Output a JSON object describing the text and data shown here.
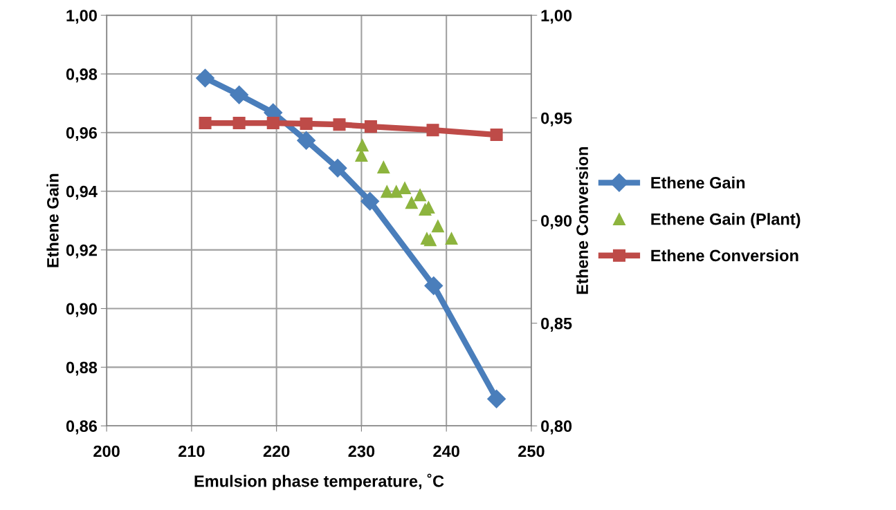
{
  "chart_data": {
    "type": "line",
    "xlabel": "Emulsion phase temperature, ˚C",
    "ylabel": "Ethene Gain",
    "y2label": "Ethene Conversion",
    "xlim": [
      200,
      250
    ],
    "xticks": [
      200,
      210,
      220,
      230,
      240,
      250
    ],
    "ylim": [
      0.86,
      1.0
    ],
    "yticks": [
      {
        "value": 0.86,
        "label": "0,86"
      },
      {
        "value": 0.88,
        "label": "0,88"
      },
      {
        "value": 0.9,
        "label": "0,90"
      },
      {
        "value": 0.92,
        "label": "0,92"
      },
      {
        "value": 0.94,
        "label": "0,94"
      },
      {
        "value": 0.96,
        "label": "0,96"
      },
      {
        "value": 0.98,
        "label": "0,98"
      },
      {
        "value": 1.0,
        "label": "1,00"
      }
    ],
    "y2lim": [
      0.8,
      1.0
    ],
    "y2ticks": [
      {
        "value": 0.8,
        "label": "0,80"
      },
      {
        "value": 0.85,
        "label": "0,85"
      },
      {
        "value": 0.9,
        "label": "0,90"
      },
      {
        "value": 0.95,
        "label": "0,95"
      },
      {
        "value": 1.0,
        "label": "1,00"
      }
    ],
    "grid": true,
    "legend": "right",
    "series": [
      {
        "name": "Ethene Gain",
        "marker": "diamond",
        "color": "#4a7ebb",
        "x": [
          211.6,
          215.6,
          219.6,
          223.5,
          227.2,
          231.0,
          238.5,
          245.9
        ],
        "values": [
          0.9786,
          0.9729,
          0.9668,
          0.9573,
          0.9479,
          0.9366,
          0.9078,
          0.8692
        ]
      },
      {
        "name": "Ethene Gain (Plant)",
        "type": "scatter",
        "marker": "triangle",
        "color": "#8db43e",
        "x": [
          230.1,
          230.0,
          232.6,
          233.0,
          234.1,
          235.1,
          236.9,
          235.9,
          237.5,
          237.9,
          239.0,
          238.1,
          237.7,
          240.6
        ],
        "values": [
          0.9557,
          0.9522,
          0.9482,
          0.9399,
          0.9399,
          0.9411,
          0.9387,
          0.9361,
          0.9338,
          0.9345,
          0.9281,
          0.9234,
          0.9239,
          0.9239
        ]
      },
      {
        "name": "Ethene Conversion",
        "marker": "square",
        "axis": "y2",
        "color": "#be4b48",
        "x": [
          211.6,
          215.6,
          219.6,
          223.5,
          227.4,
          231.1,
          238.4,
          245.9
        ],
        "values": [
          0.9475,
          0.9475,
          0.9475,
          0.9472,
          0.9468,
          0.9458,
          0.9441,
          0.9418
        ]
      }
    ]
  }
}
